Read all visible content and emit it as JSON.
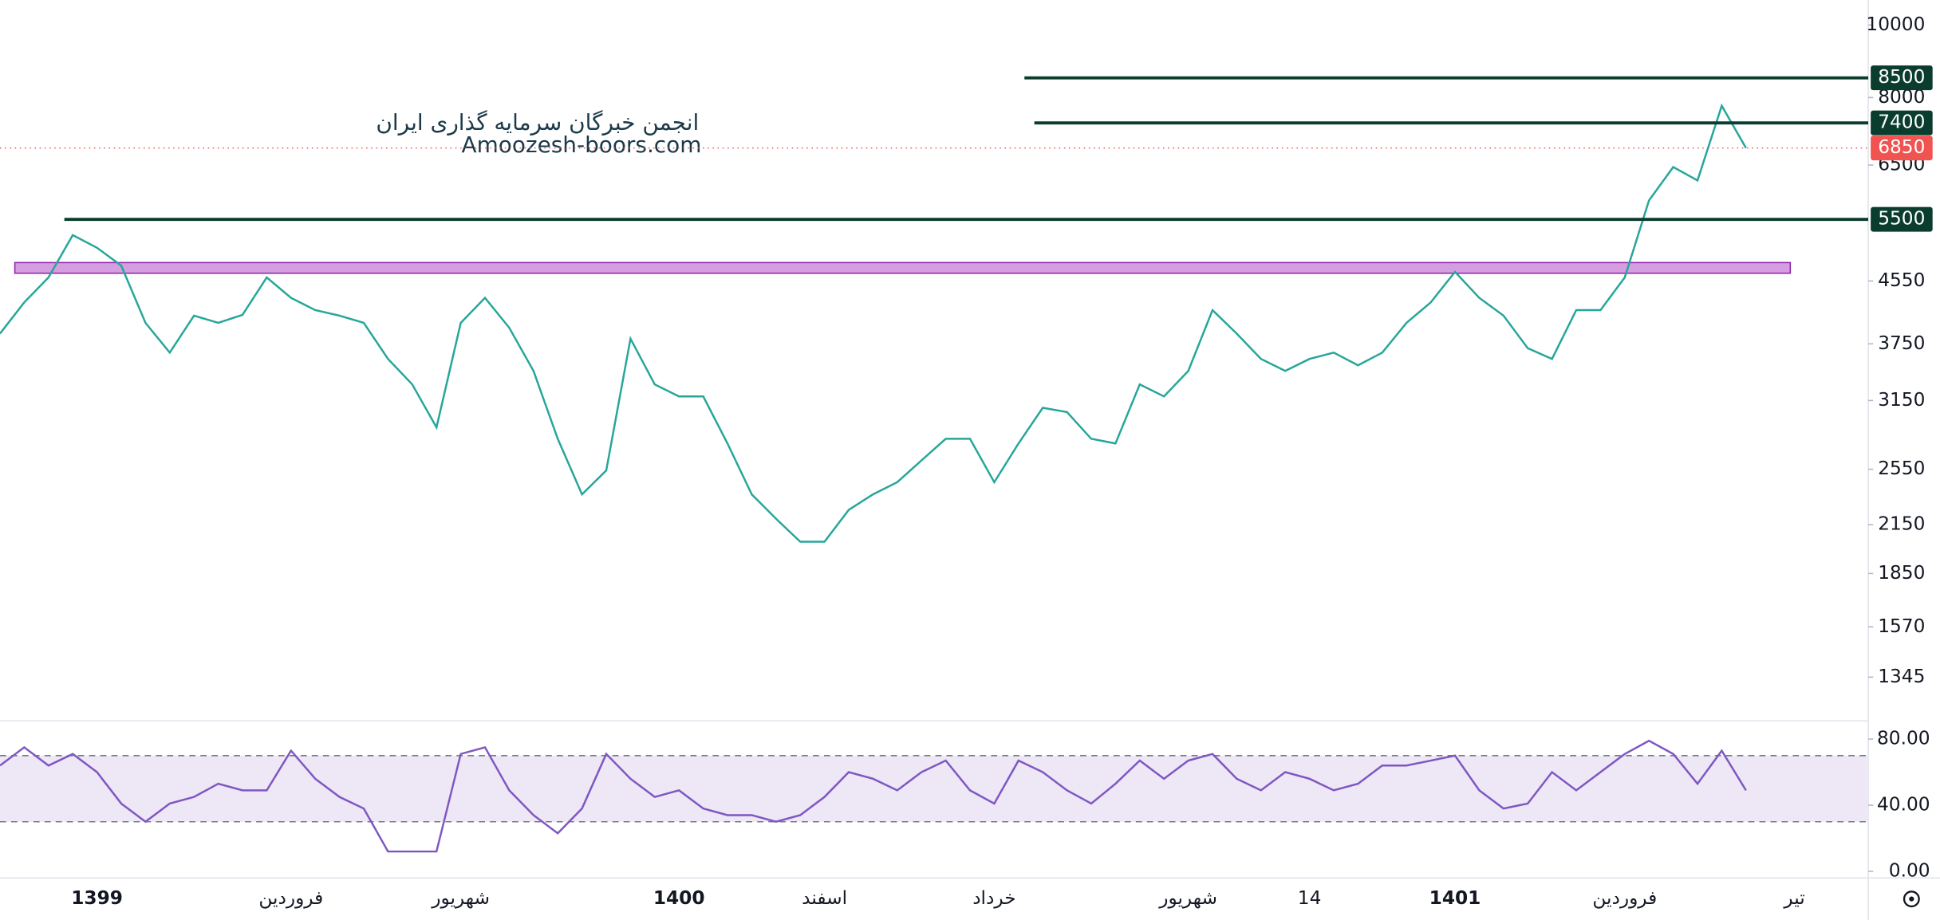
{
  "chart_data": [
    {
      "type": "line",
      "log_scale": true,
      "color": "#26a69a",
      "watermark": [
        "انجمن خبرگان سرمایه گذاری ایران",
        "Amoozesh-boors.com"
      ],
      "categories": [
        null,
        null,
        null,
        null,
        "1399",
        null,
        null,
        null,
        null,
        null,
        null,
        null,
        "فروردین",
        null,
        null,
        null,
        null,
        null,
        null,
        "شهریور",
        null,
        null,
        null,
        null,
        null,
        null,
        null,
        null,
        "1400",
        null,
        null,
        null,
        null,
        null,
        "اسفند",
        null,
        null,
        null,
        null,
        null,
        null,
        "خرداد",
        null,
        null,
        null,
        null,
        null,
        null,
        null,
        "شهریور",
        null,
        null,
        null,
        null,
        "14",
        null,
        null,
        null,
        null,
        null,
        "1401",
        null,
        null,
        null,
        null,
        null,
        null,
        "فروردین",
        null,
        null,
        null,
        null,
        null,
        null,
        "تیر"
      ],
      "series": [
        {
          "color": "#26a69a",
          "values": [
            3870,
            4260,
            4600,
            5240,
            5040,
            4770,
            4000,
            3650,
            4090,
            4000,
            4100,
            4600,
            4320,
            4160,
            4090,
            4000,
            3580,
            3310,
            2900,
            4000,
            4320,
            3940,
            3450,
            2800,
            2360,
            2540,
            3810,
            3310,
            3190,
            3190,
            2760,
            2360,
            2190,
            2040,
            2040,
            2250,
            2360,
            2450,
            2620,
            2800,
            2800,
            2450,
            2760,
            3080,
            3040,
            2800,
            2760,
            3310,
            3190,
            3450,
            4160,
            3870,
            3580,
            3450,
            3580,
            3650,
            3510,
            3650,
            4000,
            4260,
            4680,
            4320,
            4090,
            3700,
            3580,
            4160,
            4160,
            4600,
            5830,
            6460,
            6200,
            7800,
            6850,
            null,
            null
          ]
        }
      ],
      "levels": [
        8500,
        7400,
        5500
      ],
      "level_color": "#0b3d2e",
      "last_price": 6850,
      "last_price_color": "#f05350",
      "zone": {
        "low": 4660,
        "high": 4815,
        "color": "#c77dd6"
      },
      "ylim": [
        1180,
        10800
      ],
      "yticks": [
        10000,
        8000,
        6500,
        4550,
        3750,
        3150,
        2550,
        2150,
        1850,
        1570,
        1345
      ]
    },
    {
      "type": "line",
      "color": "#7e57c2",
      "series": [
        {
          "color": "#7e57c2",
          "values": [
            64,
            75,
            64,
            71,
            60,
            41,
            30,
            41,
            45,
            53,
            49,
            49,
            73,
            56,
            45,
            38,
            12,
            12,
            12,
            71,
            75,
            49,
            34,
            23,
            38,
            71,
            56,
            45,
            49,
            38,
            34,
            34,
            30,
            34,
            45,
            60,
            56,
            49,
            60,
            67,
            49,
            41,
            67,
            60,
            49,
            41,
            53,
            67,
            56,
            67,
            71,
            56,
            49,
            60,
            56,
            49,
            53,
            64,
            64,
            67,
            70,
            49,
            38,
            41,
            60,
            49,
            60,
            71,
            79,
            71,
            53,
            73,
            49,
            null,
            null
          ]
        }
      ],
      "band": [
        30,
        70
      ],
      "band_color": "#ede7f6",
      "ylim": [
        -4,
        91
      ],
      "yticks": [
        {
          "value": 80,
          "label": "80.00"
        },
        {
          "value": 40,
          "label": "40.00"
        },
        {
          "value": 0,
          "label": "0.00"
        }
      ]
    }
  ]
}
